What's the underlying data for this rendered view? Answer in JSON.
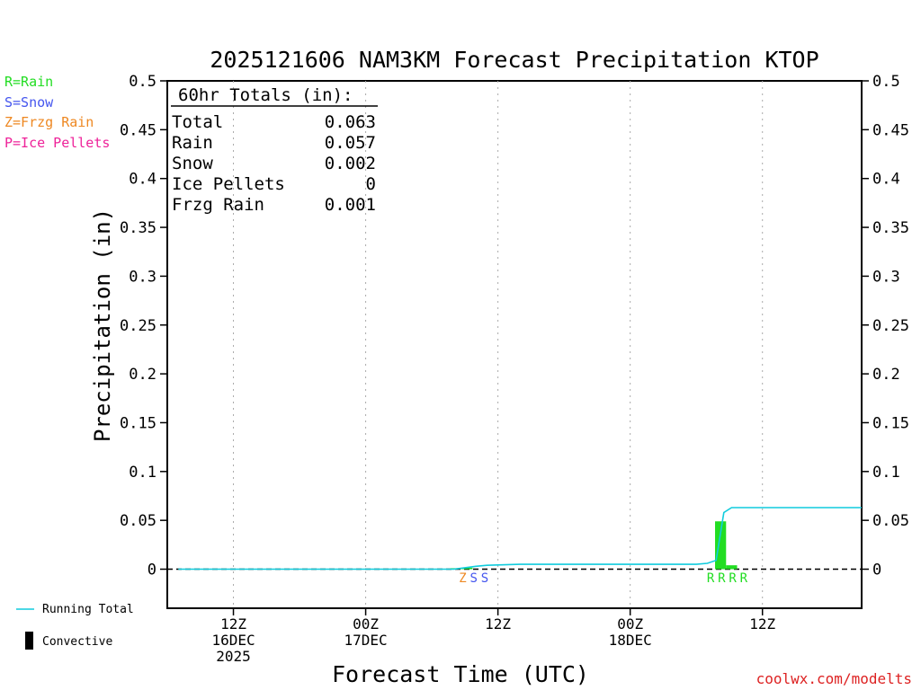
{
  "chart_data": {
    "type": "bar",
    "title": "2025121606 NAM3KM Forecast Precipitation KTOP",
    "xlabel": "Forecast Time (UTC)",
    "ylabel": "Precipitation (in)",
    "ylim": [
      -0.04,
      0.5
    ],
    "xlim_hours_from_06z_16dec": [
      0,
      63
    ],
    "yticks": [
      0,
      0.05,
      0.1,
      0.15,
      0.2,
      0.25,
      0.3,
      0.35,
      0.4,
      0.45,
      0.5
    ],
    "ytick_labels": [
      "0",
      "0.05",
      "0.1",
      "0.15",
      "0.2",
      "0.25",
      "0.3",
      "0.35",
      "0.4",
      "0.45",
      "0.5"
    ],
    "xticks": [
      {
        "hour": 6,
        "line1": "12Z",
        "line2": "16DEC",
        "line3": "2025"
      },
      {
        "hour": 18,
        "line1": "00Z",
        "line2": "17DEC",
        "line3": ""
      },
      {
        "hour": 30,
        "line1": "12Z",
        "line2": "",
        "line3": ""
      },
      {
        "hour": 42,
        "line1": "00Z",
        "line2": "18DEC",
        "line3": ""
      },
      {
        "hour": 54,
        "line1": "12Z",
        "line2": "",
        "line3": ""
      }
    ],
    "legend_types": [
      {
        "label": "R=Rain",
        "color": "#22dd22"
      },
      {
        "label": "S=Snow",
        "color": "#4455ee"
      },
      {
        "label": "Z=Frzg Rain",
        "color": "#ee8822"
      },
      {
        "label": "P=Ice Pellets",
        "color": "#ee2299"
      }
    ],
    "legend_lines": [
      {
        "label": "Running Total",
        "color": "#11ccdd"
      },
      {
        "label": "Convective",
        "color": "#000000"
      }
    ],
    "totals": {
      "header": "60hr Totals (in):",
      "rows": [
        {
          "label": "Total",
          "value": "0.063"
        },
        {
          "label": "Rain",
          "value": "0.057"
        },
        {
          "label": "Snow",
          "value": "0.002"
        },
        {
          "label": "Ice Pellets",
          "value": "0"
        },
        {
          "label": "Frzg Rain",
          "value": "0.001"
        }
      ]
    },
    "bars": [
      {
        "hour": 26.2,
        "value": 0.001,
        "color": "#22dd22"
      },
      {
        "hour": 27.2,
        "value": 0.0015,
        "color": "#22dd22"
      },
      {
        "hour": 50.2,
        "value": 0.049,
        "color": "#22dd22"
      },
      {
        "hour": 51.2,
        "value": 0.004,
        "color": "#22dd22"
      }
    ],
    "running_total": {
      "color": "#11ccdd",
      "points": [
        [
          1,
          0
        ],
        [
          26,
          0
        ],
        [
          27,
          0.0015
        ],
        [
          28,
          0.003
        ],
        [
          29,
          0.004
        ],
        [
          32,
          0.005
        ],
        [
          48,
          0.005
        ],
        [
          49,
          0.006
        ],
        [
          49.8,
          0.009
        ],
        [
          50.5,
          0.058
        ],
        [
          51.2,
          0.063
        ],
        [
          63,
          0.063
        ]
      ]
    },
    "precip_type_markers": [
      {
        "hour": 26.8,
        "text": "Z",
        "color": "#ee8822"
      },
      {
        "hour": 27.8,
        "text": "S",
        "color": "#4455ee"
      },
      {
        "hour": 28.8,
        "text": "S",
        "color": "#4455ee"
      },
      {
        "hour": 49.3,
        "text": "R",
        "color": "#22dd22"
      },
      {
        "hour": 50.3,
        "text": "R",
        "color": "#22dd22"
      },
      {
        "hour": 51.3,
        "text": "R",
        "color": "#22dd22"
      },
      {
        "hour": 52.3,
        "text": "R",
        "color": "#22dd22"
      }
    ],
    "zero_line": "dashed",
    "grid": "vertical-dotted",
    "credit": "coolwx.com/modelts"
  }
}
